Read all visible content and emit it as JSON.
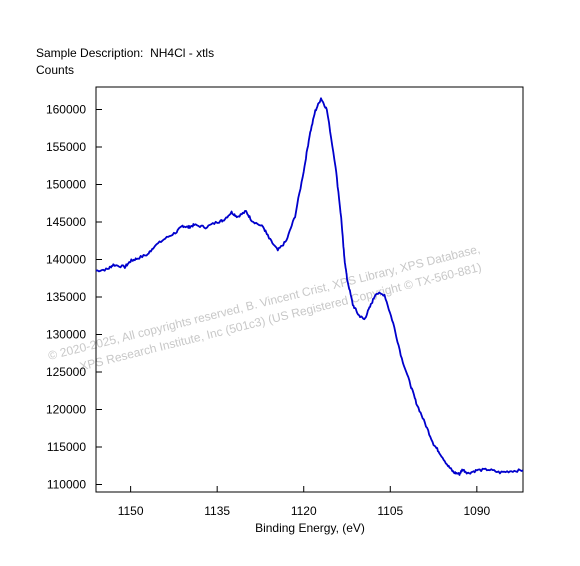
{
  "header": {
    "description_label": "Sample Description:",
    "description_value": "NH4Cl - xtls",
    "y_axis_title": "Counts"
  },
  "watermark": {
    "line1": "©  2020-2025,  All copyrights reserved,    B. Vincent Crist,  XPS Library, XPS Database,",
    "line2": "XPS Research Institute, Inc (501c3)   (US Registered Copyright © TX-560-881)"
  },
  "chart_data": {
    "type": "line",
    "title": "",
    "xlabel": "Binding Energy, (eV)",
    "ylabel": "Counts",
    "xlim": [
      1156,
      1082
    ],
    "ylim": [
      109000,
      163000
    ],
    "x_reversed": true,
    "grid": false,
    "x_ticks": [
      1150,
      1135,
      1120,
      1105,
      1090
    ],
    "y_ticks": [
      110000,
      115000,
      120000,
      125000,
      130000,
      135000,
      140000,
      145000,
      150000,
      155000,
      160000
    ],
    "line_color": "#0000cc",
    "series": [
      {
        "x": [
          1156,
          1154,
          1153,
          1151,
          1150,
          1149,
          1147,
          1146,
          1144,
          1142,
          1141,
          1140,
          1139,
          1137,
          1135,
          1134,
          1132.5,
          1131.5,
          1130,
          1129,
          1127,
          1126,
          1124.5,
          1123,
          1121.5,
          1120,
          1119,
          1118,
          1117,
          1116,
          1114.5,
          1113.5,
          1113,
          1112.5,
          1111.5,
          1110.5,
          1109.5,
          1108.5,
          1107.5,
          1106,
          1104.5,
          1103,
          1101.5,
          1100.5,
          1099,
          1097.5,
          1096.5,
          1095,
          1094,
          1093,
          1092.5,
          1091.5,
          1090,
          1088,
          1086,
          1084,
          1082
        ],
        "y": [
          138500,
          138700,
          139300,
          139000,
          139800,
          140100,
          140700,
          141700,
          142800,
          143700,
          144500,
          144300,
          144600,
          144300,
          145000,
          145200,
          146300,
          145700,
          146400,
          145200,
          144300,
          142800,
          141200,
          142500,
          145800,
          151800,
          156500,
          159800,
          161500,
          160000,
          152500,
          145500,
          140500,
          137500,
          134000,
          132600,
          132000,
          133700,
          135500,
          135300,
          131500,
          126800,
          123300,
          120900,
          118200,
          115400,
          114300,
          112500,
          111600,
          111400,
          112000,
          111500,
          111900,
          112000,
          111600,
          111800,
          111900
        ]
      }
    ]
  }
}
